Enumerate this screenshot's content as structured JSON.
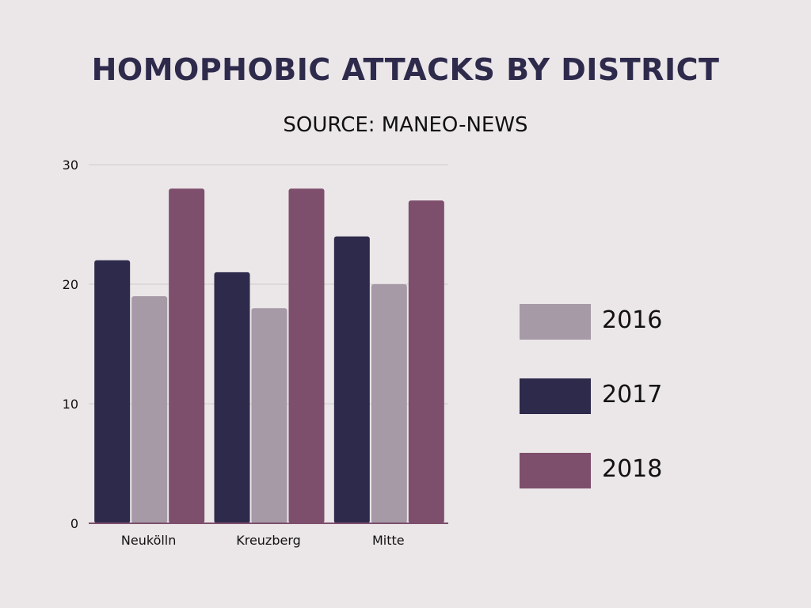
{
  "chart_data": {
    "type": "bar",
    "title": "HOMOPHOBIC ATTACKS BY DISTRICT",
    "subtitle": "SOURCE: MANEO-NEWS",
    "categories": [
      "Neukölln",
      "Kreuzberg",
      "Mitte"
    ],
    "series": [
      {
        "name": "2017",
        "values": [
          22,
          21,
          24
        ],
        "color": "#2e2a4b"
      },
      {
        "name": "2016",
        "values": [
          19,
          18,
          20
        ],
        "color": "#a59aa6"
      },
      {
        "name": "2018",
        "values": [
          28,
          28,
          27
        ],
        "color": "#7d4f6c"
      }
    ],
    "ylim": [
      0,
      30
    ],
    "yticks": [
      "0",
      "10",
      "20",
      "30"
    ],
    "grid": true,
    "legend_position": "right",
    "legend": [
      {
        "label": "2016",
        "color": "#a59aa6"
      },
      {
        "label": "2017",
        "color": "#2e2a4b"
      },
      {
        "label": "2018",
        "color": "#7d4f6c"
      }
    ]
  }
}
